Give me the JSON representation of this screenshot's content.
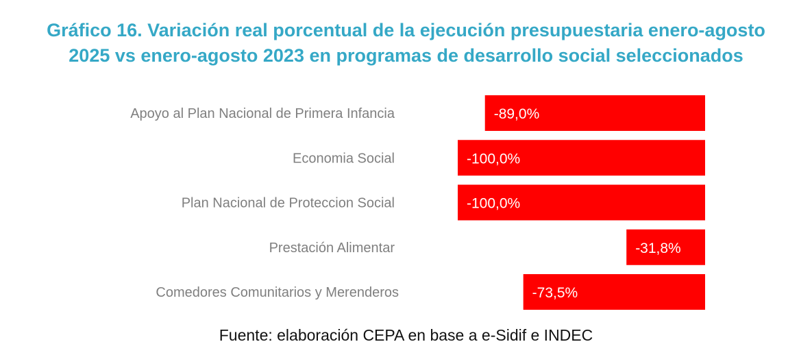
{
  "chart_data": {
    "type": "bar",
    "orientation": "horizontal",
    "title": [
      "Gráfico 16. Variación real porcentual de la ejecución presupuestaria enero-agosto",
      "2025 vs enero-agosto 2023 en programas de desarrollo social seleccionados"
    ],
    "categories": [
      "Apoyo al Plan Nacional de Primera Infancia",
      "Economia Social",
      "Plan Nacional de Proteccion Social",
      "Prestación Alimentar",
      "Comedores Comunitarios y Merenderos"
    ],
    "values": [
      -89.0,
      -100.0,
      -100.0,
      -31.8,
      -73.5
    ],
    "data_labels": [
      "-89,0%",
      "-100,0%",
      "-100,0%",
      "-31,8%",
      "-73,5%"
    ],
    "xlim": [
      -100,
      0
    ],
    "grid": false,
    "bar_color": "#ff0000",
    "source": "Fuente: elaboración CEPA en base a e-Sidif e INDEC"
  }
}
